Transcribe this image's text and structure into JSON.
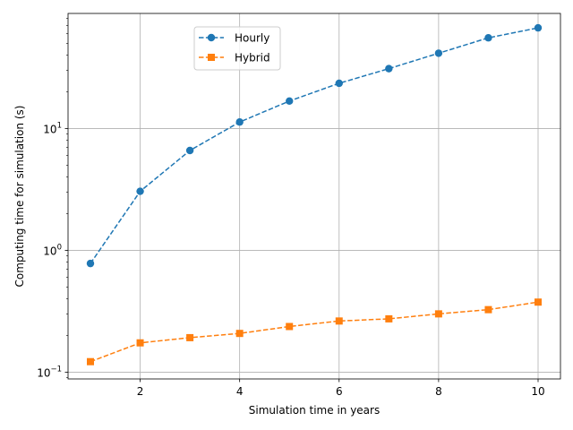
{
  "chart_data": {
    "type": "line",
    "x": [
      1,
      2,
      3,
      4,
      5,
      6,
      7,
      8,
      9,
      10
    ],
    "series": [
      {
        "name": "Hourly",
        "values": [
          0.78,
          3.05,
          6.6,
          11.3,
          16.8,
          23.5,
          31.0,
          41.5,
          55.5,
          67.0
        ],
        "color": "#1f77b4",
        "marker": "circle",
        "linestyle": "dashed"
      },
      {
        "name": "Hybrid",
        "values": [
          0.122,
          0.174,
          0.192,
          0.208,
          0.237,
          0.263,
          0.274,
          0.301,
          0.326,
          0.376
        ],
        "color": "#ff7f0e",
        "marker": "square",
        "linestyle": "dashed"
      }
    ],
    "xlabel": "Simulation time in years",
    "ylabel": "Computing time for simulation (s)",
    "xlim": [
      0.55,
      10.45
    ],
    "ylim": [
      0.088,
      88
    ],
    "yscale": "log",
    "xticks": [
      2,
      4,
      6,
      8,
      10
    ],
    "xtick_labels": [
      "2",
      "4",
      "6",
      "8",
      "10"
    ],
    "yticks": [
      0.1,
      1,
      10
    ],
    "ytick_labels": [
      {
        "base": "10",
        "exp": "−1"
      },
      {
        "base": "10",
        "exp": "0"
      },
      {
        "base": "10",
        "exp": "1"
      }
    ],
    "grid": true,
    "legend_position": "upper-center"
  }
}
